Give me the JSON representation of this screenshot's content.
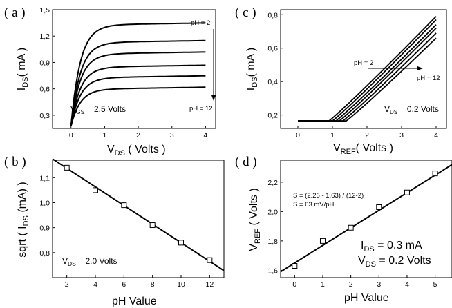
{
  "chart_data": [
    {
      "panel": "a",
      "type": "line",
      "xlabel": "V_DS ( Volts )",
      "ylabel": "I_DS ( mA )",
      "xlim": [
        -0.55,
        4.3
      ],
      "ylim": [
        0.15,
        1.5
      ],
      "xticks": [
        0,
        1,
        2,
        3,
        4
      ],
      "yticks": [
        0.3,
        0.6,
        0.9,
        1.2,
        1.5
      ],
      "ytick_labels": [
        "0,3",
        "0,6",
        "0,9",
        "1,2",
        "1,5"
      ],
      "series": [
        {
          "values_sat": 1.33
        },
        {
          "values_sat": 1.13
        },
        {
          "values_sat": 1.0
        },
        {
          "values_sat": 0.85
        },
        {
          "values_sat": 0.73
        },
        {
          "values_sat": 0.6
        }
      ],
      "annotations": {
        "top": "pH = 2",
        "bottom": "pH = 12",
        "vgs": "V_GS = 2.5 Volts"
      }
    },
    {
      "panel": "b",
      "type": "scatter",
      "xlabel": "pH Value",
      "ylabel": "sqrt ( I_DS (mA) )",
      "xlim": [
        1,
        13
      ],
      "ylim": [
        0.7,
        1.17
      ],
      "xticks": [
        2,
        4,
        6,
        8,
        10,
        12
      ],
      "yticks": [
        0.8,
        0.9,
        1.0,
        1.1
      ],
      "ytick_labels": [
        "0,8",
        "0,9",
        "1,0",
        "1,1"
      ],
      "x": [
        2,
        4,
        6,
        8,
        10,
        12
      ],
      "y": [
        1.14,
        1.05,
        0.99,
        0.91,
        0.84,
        0.77
      ],
      "fit": {
        "x": [
          1,
          13
        ],
        "y": [
          1.175,
          0.728
        ]
      },
      "annotations": {
        "vds": "V_DS = 2.0 Volts"
      }
    },
    {
      "panel": "c",
      "type": "line",
      "xlabel": "V_REF ( Volts )",
      "ylabel": "I_DS ( mA )",
      "xlim": [
        -0.5,
        4.3
      ],
      "ylim": [
        0.12,
        0.83
      ],
      "xticks": [
        0,
        1,
        2,
        3,
        4
      ],
      "yticks": [
        0.2,
        0.4,
        0.6,
        0.8
      ],
      "ytick_labels": [
        "0,2",
        "0,4",
        "0,6",
        "0,8"
      ],
      "series": [
        {
          "threshold": 0.9,
          "end": 0.79
        },
        {
          "threshold": 1.0,
          "end": 0.77
        },
        {
          "threshold": 1.1,
          "end": 0.74
        },
        {
          "threshold": 1.2,
          "end": 0.72
        },
        {
          "threshold": 1.3,
          "end": 0.69
        },
        {
          "threshold": 1.4,
          "end": 0.66
        }
      ],
      "annotations": {
        "left": "pH = 2",
        "right": "pH = 12",
        "vds": "V_DS = 0.2 Volts"
      }
    },
    {
      "panel": "d",
      "type": "scatter",
      "xlabel": "pH Value",
      "ylabel": "V_REF ( Volts )",
      "xlim": [
        -0.5,
        5.6
      ],
      "ylim": [
        1.55,
        2.35
      ],
      "xticks": [
        0,
        1,
        2,
        3,
        4,
        5
      ],
      "yticks": [
        1.6,
        1.8,
        2.0,
        2.2
      ],
      "ytick_labels": [
        "1,6",
        "1,8",
        "2,0",
        "2,2"
      ],
      "x": [
        0,
        1,
        2,
        3,
        4,
        5
      ],
      "y": [
        1.63,
        1.8,
        1.89,
        2.03,
        2.13,
        2.26
      ],
      "fit": {
        "x": [
          -0.5,
          5.6
        ],
        "y": [
          1.59,
          2.32
        ]
      },
      "annotations": {
        "formula": "S = (2.26 - 1.63) / (12-2)",
        "slope": "S =  63 mV/pH",
        "ids": "I_DS  = 0.3 mA",
        "vds": "V_DS = 0.2 Volts"
      }
    }
  ]
}
